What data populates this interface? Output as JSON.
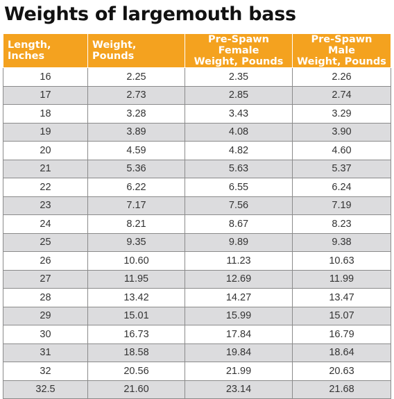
{
  "title": "Weights of largemouth bass",
  "table": {
    "headers": [
      [
        "Length, Inches"
      ],
      [
        "Weight, Pounds"
      ],
      [
        "Pre-Spawn Female",
        "Weight, Pounds"
      ],
      [
        "Pre-Spawn Male",
        "Weight, Pounds"
      ]
    ],
    "rows": [
      [
        "16",
        "2.25",
        "2.35",
        "2.26"
      ],
      [
        "17",
        "2.73",
        "2.85",
        "2.74"
      ],
      [
        "18",
        "3.28",
        "3.43",
        "3.29"
      ],
      [
        "19",
        "3.89",
        "4.08",
        "3.90"
      ],
      [
        "20",
        "4.59",
        "4.82",
        "4.60"
      ],
      [
        "21",
        "5.36",
        "5.63",
        "5.37"
      ],
      [
        "22",
        "6.22",
        "6.55",
        "6.24"
      ],
      [
        "23",
        "7.17",
        "7.56",
        "7.19"
      ],
      [
        "24",
        "8.21",
        "8.67",
        "8.23"
      ],
      [
        "25",
        "9.35",
        "9.89",
        "9.38"
      ],
      [
        "26",
        "10.60",
        "11.23",
        "10.63"
      ],
      [
        "27",
        "11.95",
        "12.69",
        "11.99"
      ],
      [
        "28",
        "13.42",
        "14.27",
        "13.47"
      ],
      [
        "29",
        "15.01",
        "15.99",
        "15.07"
      ],
      [
        "30",
        "16.73",
        "17.84",
        "16.79"
      ],
      [
        "31",
        "18.58",
        "19.84",
        "18.64"
      ],
      [
        "32",
        "20.56",
        "21.99",
        "20.63"
      ],
      [
        "32.5",
        "21.60",
        "23.14",
        "21.68"
      ]
    ]
  },
  "colors": {
    "header_background": "#f4a21f",
    "header_text": "#ffffff",
    "row_stripe": "#dcdcde",
    "grid_line": "#8a8a8a"
  }
}
